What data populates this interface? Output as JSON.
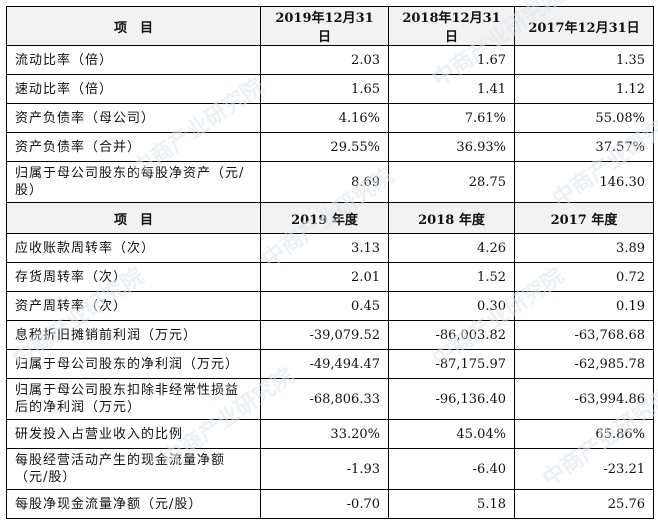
{
  "watermark": "中商产业研究院",
  "section1": {
    "header": [
      "项　目",
      "2019年12月31日",
      "2018年12月31日",
      "2017年12月31日"
    ],
    "rows": [
      {
        "label": "流动比率（倍）",
        "v": [
          "2.03",
          "1.67",
          "1.35"
        ]
      },
      {
        "label": "速动比率（倍）",
        "v": [
          "1.65",
          "1.41",
          "1.12"
        ]
      },
      {
        "label": "资产负债率（母公司）",
        "v": [
          "4.16%",
          "7.61%",
          "55.08%"
        ]
      },
      {
        "label": "资产负债率（合并）",
        "v": [
          "29.55%",
          "36.93%",
          "37.57%"
        ]
      },
      {
        "label": "归属于母公司股东的每股净资产（元/股）",
        "v": [
          "8.69",
          "28.75",
          "146.30"
        ]
      }
    ]
  },
  "section2": {
    "header": [
      "项　目",
      "2019 年度",
      "2018 年度",
      "2017 年度"
    ],
    "rows": [
      {
        "label": "应收账款周转率（次）",
        "v": [
          "3.13",
          "4.26",
          "3.89"
        ]
      },
      {
        "label": "存货周转率（次）",
        "v": [
          "2.01",
          "1.52",
          "0.72"
        ]
      },
      {
        "label": "资产周转率（次）",
        "v": [
          "0.45",
          "0.30",
          "0.19"
        ]
      },
      {
        "label": "息税折旧摊销前利润（万元）",
        "v": [
          "-39,079.52",
          "-86,003.82",
          "-63,768.68"
        ]
      },
      {
        "label": "归属于母公司股东的净利润（万元）",
        "v": [
          "-49,494.47",
          "-87,175.97",
          "-62,985.78"
        ]
      },
      {
        "label": "归属于母公司股东扣除非经常性损益后的净利润（万元）",
        "v": [
          "-68,806.33",
          "-96,136.40",
          "-63,994.86"
        ]
      },
      {
        "label": "研发投入占营业收入的比例",
        "v": [
          "33.20%",
          "45.04%",
          "65.86%"
        ]
      },
      {
        "label": "每股经营活动产生的现金流量净额（元/股）",
        "v": [
          "-1.93",
          "-6.40",
          "-23.21"
        ]
      },
      {
        "label": "每股净现金流量净额（元/股）",
        "v": [
          "-0.70",
          "5.18",
          "25.76"
        ]
      }
    ]
  }
}
